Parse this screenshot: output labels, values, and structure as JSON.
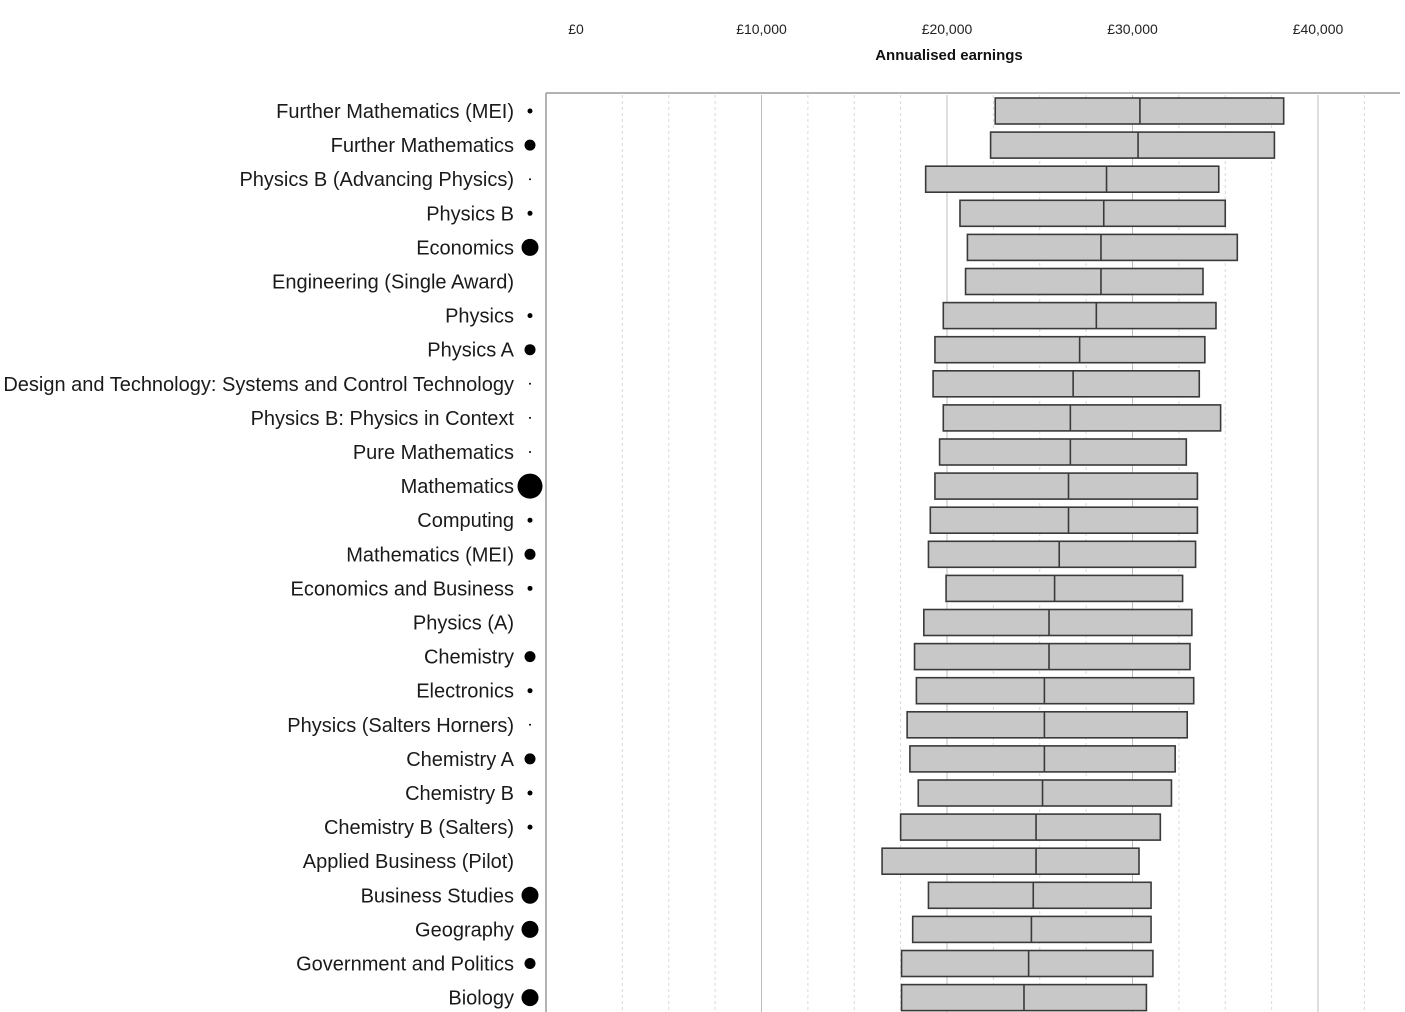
{
  "chart_data": {
    "type": "bar",
    "subtype": "range-bar-with-median",
    "xlabel": "Annualised earnings",
    "ylabel": "",
    "title": "",
    "x_ticks": [
      "£0",
      "£10,000",
      "£20,000",
      "£30,000",
      "£40,000"
    ],
    "xlim": [
      -1000,
      43500
    ],
    "grid": true,
    "colors": {
      "bar_fill": "#c8c8c8",
      "bar_stroke": "#3a3a3a",
      "dot": "#000000"
    },
    "series": [
      {
        "name": "",
        "fields": [
          "low",
          "median",
          "high"
        ]
      }
    ],
    "categories": [
      "Further Mathematics (MEI)",
      "Further Mathematics",
      "Physics B (Advancing Physics)",
      "Physics B",
      "Economics",
      "Engineering (Single Award)",
      "Physics",
      "Physics A",
      "Design and Technology: Systems and Control Technology",
      "Physics B: Physics in Context",
      "Pure Mathematics",
      "Mathematics",
      "Computing",
      "Mathematics (MEI)",
      "Economics and Business",
      "Physics (A)",
      "Chemistry",
      "Electronics",
      "Physics (Salters Horners)",
      "Chemistry A",
      "Chemistry B",
      "Chemistry B (Salters)",
      "Applied Business (Pilot)",
      "Business Studies",
      "Geography",
      "Government and Politics",
      "Biology"
    ],
    "low": [
      22600,
      22350,
      18850,
      20700,
      21100,
      21000,
      19800,
      19350,
      19250,
      19800,
      19600,
      19350,
      19100,
      19000,
      19950,
      18750,
      18250,
      18350,
      17850,
      18000,
      18450,
      17500,
      16500,
      19000,
      18150,
      17550,
      17550
    ],
    "median": [
      30400,
      30300,
      28600,
      28450,
      28300,
      28300,
      28050,
      27150,
      26800,
      26650,
      26650,
      26550,
      26550,
      26050,
      25800,
      25500,
      25500,
      25250,
      25250,
      25250,
      25150,
      24800,
      24800,
      24650,
      24550,
      24400,
      24150
    ],
    "high": [
      38150,
      37650,
      34650,
      35000,
      35650,
      33800,
      34500,
      33900,
      33600,
      34750,
      32900,
      33500,
      33500,
      33400,
      32700,
      33200,
      33100,
      33300,
      32950,
      32300,
      32100,
      31500,
      30350,
      31000,
      31000,
      31100,
      30750
    ],
    "dot_size": [
      "small",
      "medium",
      "tiny",
      "small",
      "large",
      "none",
      "small",
      "medium",
      "tiny",
      "tiny",
      "tiny",
      "xlarge",
      "small",
      "medium",
      "small",
      "none",
      "medium",
      "small",
      "tiny",
      "medium",
      "small",
      "small",
      "none",
      "large",
      "large",
      "medium",
      "large"
    ]
  }
}
